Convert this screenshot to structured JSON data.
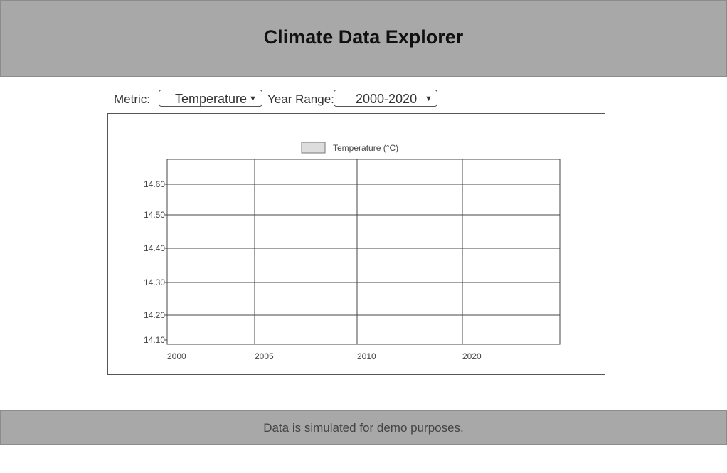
{
  "header": {
    "title": "Climate Data Explorer"
  },
  "controls": {
    "metric_label": "Metric:",
    "metric_value": "Temperature",
    "year_range_label": "Year Range:",
    "year_range_value": "2000-2020"
  },
  "chart_data": {
    "type": "line",
    "legend": [
      {
        "name": "Temperature (°C)",
        "color": "#dddddd"
      }
    ],
    "legend_placement": "top-center",
    "x_ticks": [
      "2000",
      "2005",
      "2010",
      "2020"
    ],
    "y_ticks": [
      "14.60",
      "14.50",
      "14.40",
      "14.30",
      "14.20",
      "14.10"
    ],
    "series": [
      {
        "name": "Temperature (°C)",
        "values": []
      }
    ],
    "grid": true
  },
  "footer": {
    "note": "Data is simulated for demo purposes."
  }
}
